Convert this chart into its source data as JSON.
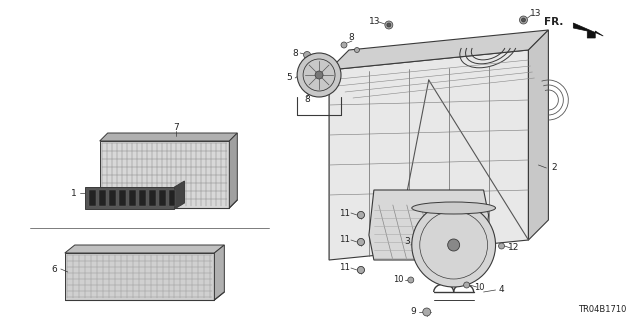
{
  "fig_width": 6.4,
  "fig_height": 3.19,
  "dpi": 100,
  "bg_color": "#ffffff",
  "lc": "#3a3a3a",
  "diagram_code": "TR04B1710",
  "fr_label": "FR."
}
